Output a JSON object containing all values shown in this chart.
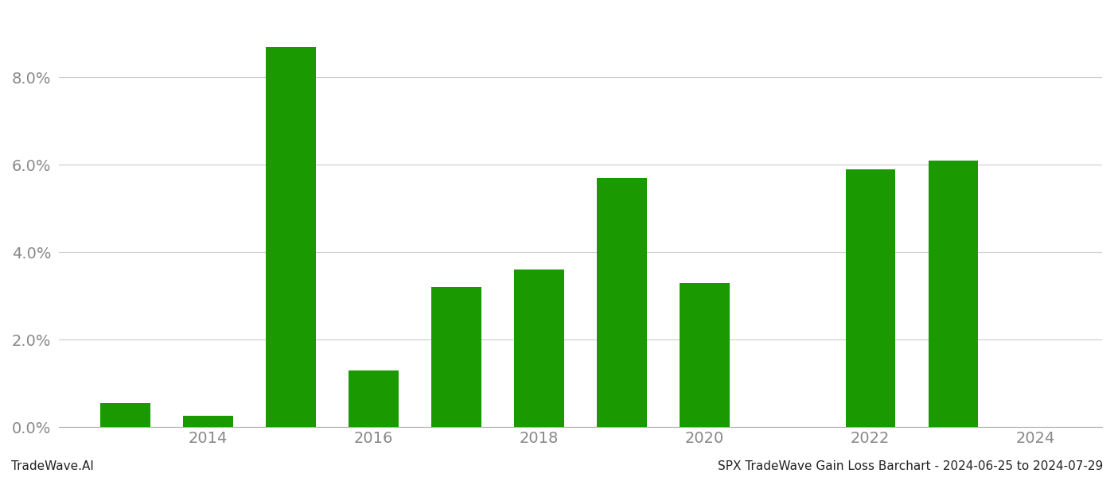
{
  "years": [
    2013,
    2014,
    2015,
    2016,
    2017,
    2018,
    2019,
    2020,
    2021,
    2022,
    2023,
    2024
  ],
  "values": [
    0.0055,
    0.0025,
    0.087,
    0.013,
    0.032,
    0.036,
    0.057,
    0.033,
    0.0,
    0.059,
    0.061,
    0.0
  ],
  "bar_color": "#1a9a00",
  "title_left": "TradeWave.AI",
  "title_right": "SPX TradeWave Gain Loss Barchart - 2024-06-25 to 2024-07-29",
  "ylim": [
    0.0,
    0.095
  ],
  "yticks": [
    0.0,
    0.02,
    0.04,
    0.06,
    0.08
  ],
  "background_color": "#ffffff",
  "grid_color": "#cccccc",
  "tick_label_color": "#888888",
  "title_fontsize": 11,
  "tick_fontsize": 14,
  "bar_width": 0.6
}
